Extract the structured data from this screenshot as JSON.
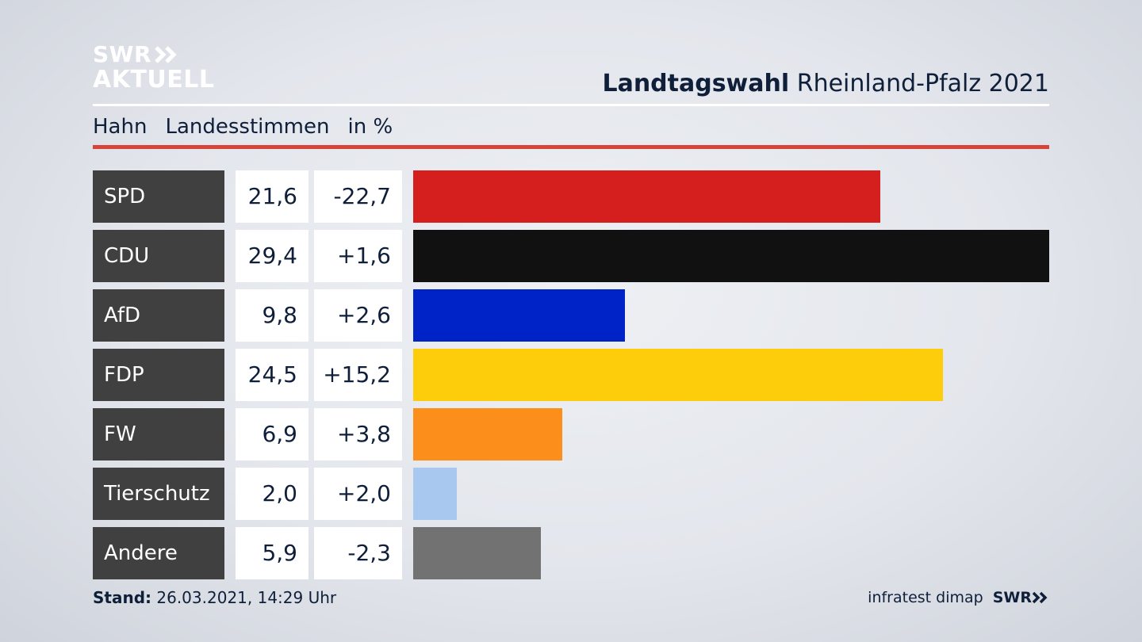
{
  "logo": {
    "line1": "SWR",
    "line2": "AKTUELL"
  },
  "header": {
    "title_bold": "Landtagswahl",
    "title_rest": "Rheinland-Pfalz 2021"
  },
  "subtitle": {
    "place": "Hahn",
    "measure": "Landesstimmen",
    "unit": "in %"
  },
  "colors": {
    "SPD": "#d51f1f",
    "CDU": "#111111",
    "AfD": "#0023c8",
    "FDP": "#fdcd0c",
    "FW": "#fc8f1b",
    "Tierschutz": "#a8c8f0",
    "Andere": "#727272"
  },
  "chart_data": {
    "type": "bar",
    "orientation": "horizontal",
    "categories": [
      "SPD",
      "CDU",
      "AfD",
      "FDP",
      "FW",
      "Tierschutz",
      "Andere"
    ],
    "values": [
      21.6,
      29.4,
      9.8,
      24.5,
      6.9,
      2.0,
      5.9
    ],
    "values_label": [
      "21,6",
      "29,4",
      "9,8",
      "24,5",
      "6,9",
      "2,0",
      "5,9"
    ],
    "changes": [
      -22.7,
      1.6,
      2.6,
      15.2,
      3.8,
      2.0,
      -2.3
    ],
    "changes_label": [
      "-22,7",
      "+1,6",
      "+2,6",
      "+15,2",
      "+3,8",
      "+2,0",
      "-2,3"
    ],
    "title": "Landtagswahl Rheinland-Pfalz 2021",
    "unit": "in %"
  },
  "footer": {
    "stand_label": "Stand:",
    "stand_value": "26.03.2021, 14:29 Uhr",
    "source": "infratest dimap",
    "brand": "SWR"
  }
}
